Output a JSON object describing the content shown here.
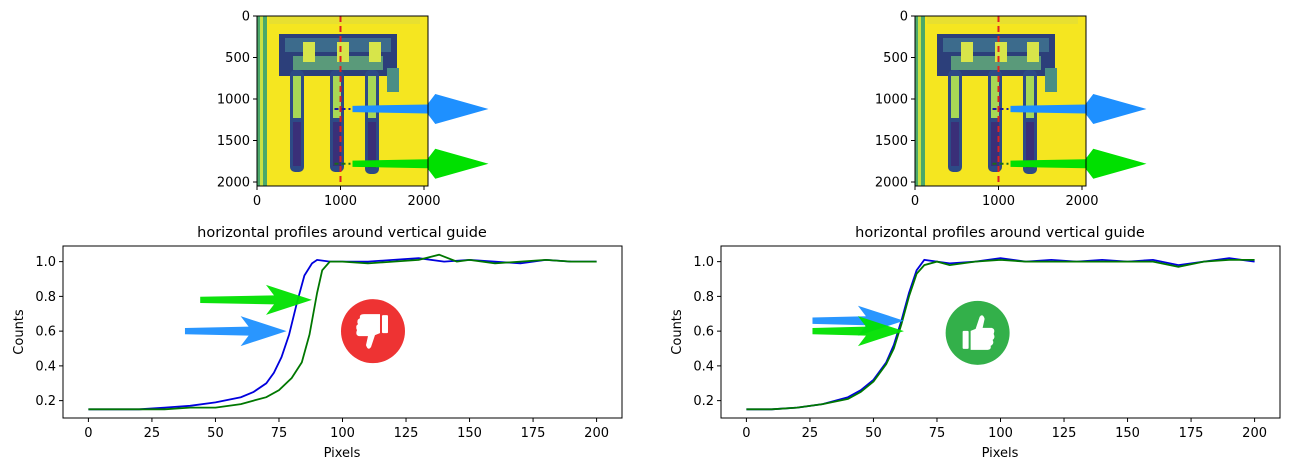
{
  "colors": {
    "blue_series": "#0000dd",
    "green_series": "#007700",
    "guide_line": "#e02020",
    "arrow_blue": "#1e90ff",
    "arrow_green": "#00e000",
    "badge_bad": "#ee3333",
    "badge_good": "#33b04a",
    "image_bg": "#f5e620"
  },
  "chart_data": [
    {
      "type": "image",
      "panel": "top-left",
      "xticks": [
        "0",
        "1000",
        "2000"
      ],
      "yticks": [
        "0",
        "500",
        "1000",
        "1500",
        "2000"
      ],
      "xlim": [
        0,
        2048
      ],
      "ylim": [
        2048,
        0
      ],
      "guide_x": 1000,
      "marker_rows": [
        1120,
        1780
      ]
    },
    {
      "type": "image",
      "panel": "top-right",
      "xticks": [
        "0",
        "1000",
        "2000"
      ],
      "yticks": [
        "0",
        "500",
        "1000",
        "1500",
        "2000"
      ],
      "xlim": [
        0,
        2048
      ],
      "ylim": [
        2048,
        0
      ],
      "guide_x": 1000,
      "marker_rows": [
        1120,
        1780
      ]
    },
    {
      "type": "line",
      "panel": "bottom-left",
      "title": "horizontal profiles around vertical guide",
      "xlabel": "Pixels",
      "ylabel": "Counts",
      "xlim": [
        -10,
        210
      ],
      "ylim": [
        0.1,
        1.09
      ],
      "xticks": [
        0,
        25,
        50,
        75,
        100,
        125,
        150,
        175,
        200
      ],
      "yticks": [
        0.2,
        0.4,
        0.6,
        0.8,
        1.0
      ],
      "series": [
        {
          "color": "blue",
          "x": [
            0,
            10,
            20,
            30,
            40,
            50,
            60,
            65,
            70,
            73,
            76,
            79,
            82,
            85,
            88,
            90,
            95,
            100,
            110,
            120,
            130,
            140,
            150,
            160,
            170,
            180,
            190,
            200
          ],
          "y": [
            0.15,
            0.15,
            0.15,
            0.16,
            0.17,
            0.19,
            0.22,
            0.25,
            0.3,
            0.36,
            0.45,
            0.58,
            0.76,
            0.92,
            0.99,
            1.01,
            1.0,
            1.0,
            1.0,
            1.01,
            1.02,
            1.0,
            1.01,
            1.0,
            0.99,
            1.01,
            1.0,
            1.0
          ]
        },
        {
          "color": "green",
          "x": [
            0,
            10,
            20,
            30,
            40,
            50,
            60,
            65,
            70,
            75,
            80,
            84,
            87,
            90,
            92,
            95,
            100,
            110,
            120,
            130,
            138,
            145,
            150,
            160,
            170,
            180,
            190,
            200
          ],
          "y": [
            0.15,
            0.15,
            0.15,
            0.15,
            0.16,
            0.16,
            0.18,
            0.2,
            0.22,
            0.26,
            0.33,
            0.42,
            0.58,
            0.82,
            0.95,
            1.0,
            1.0,
            0.99,
            1.0,
            1.01,
            1.04,
            1.0,
            1.01,
            0.99,
            1.0,
            1.01,
            1.0,
            1.0
          ]
        }
      ],
      "arrows": [
        {
          "color": "blue",
          "from": [
            38,
            0.6
          ],
          "to": [
            78,
            0.6
          ]
        },
        {
          "color": "green",
          "from": [
            44,
            0.78
          ],
          "to": [
            88,
            0.78
          ]
        }
      ],
      "badge": {
        "kind": "thumbs-down",
        "x": 112,
        "y": 0.6
      }
    },
    {
      "type": "line",
      "panel": "bottom-right",
      "title": "horizontal profiles around vertical guide",
      "xlabel": "Pixels",
      "ylabel": "Counts",
      "xlim": [
        -10,
        210
      ],
      "ylim": [
        0.1,
        1.09
      ],
      "xticks": [
        0,
        25,
        50,
        75,
        100,
        125,
        150,
        175,
        200
      ],
      "yticks": [
        0.2,
        0.4,
        0.6,
        0.8,
        1.0
      ],
      "series": [
        {
          "color": "blue",
          "x": [
            0,
            10,
            20,
            30,
            40,
            45,
            50,
            55,
            58,
            61,
            64,
            67,
            70,
            75,
            80,
            90,
            100,
            110,
            120,
            130,
            140,
            150,
            160,
            170,
            180,
            190,
            200
          ],
          "y": [
            0.15,
            0.15,
            0.16,
            0.18,
            0.22,
            0.26,
            0.32,
            0.42,
            0.52,
            0.66,
            0.82,
            0.95,
            1.01,
            1.0,
            0.99,
            1.0,
            1.02,
            1.0,
            1.01,
            1.0,
            1.01,
            1.0,
            1.01,
            0.98,
            1.0,
            1.02,
            1.0
          ]
        },
        {
          "color": "green",
          "x": [
            0,
            10,
            20,
            30,
            40,
            45,
            50,
            55,
            58,
            61,
            64,
            67,
            70,
            75,
            80,
            90,
            100,
            110,
            120,
            130,
            140,
            150,
            160,
            170,
            180,
            190,
            200
          ],
          "y": [
            0.15,
            0.15,
            0.16,
            0.18,
            0.21,
            0.25,
            0.31,
            0.41,
            0.5,
            0.64,
            0.8,
            0.93,
            0.98,
            1.0,
            0.98,
            1.0,
            1.01,
            1.0,
            1.0,
            1.0,
            1.0,
            1.0,
            1.0,
            0.97,
            1.0,
            1.01,
            1.01
          ]
        }
      ],
      "arrows": [
        {
          "color": "blue",
          "from": [
            26,
            0.66
          ],
          "to": [
            62,
            0.66
          ]
        },
        {
          "color": "green",
          "from": [
            26,
            0.6
          ],
          "to": [
            62,
            0.6
          ]
        }
      ],
      "badge": {
        "kind": "thumbs-up",
        "x": 91,
        "y": 0.59
      }
    }
  ]
}
